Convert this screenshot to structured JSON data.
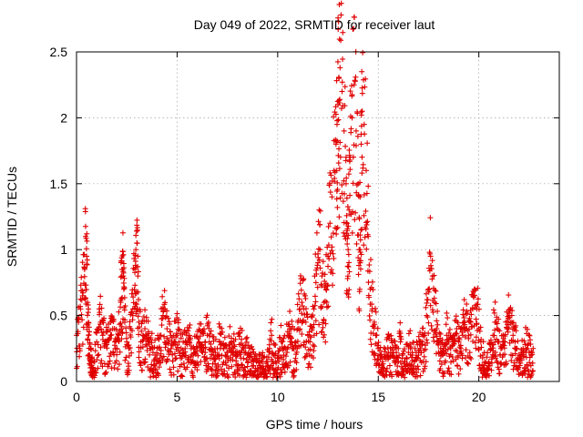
{
  "chart_data": {
    "type": "scatter",
    "title": "Day 049 of 2022, SRMTID for receiver laut",
    "xlabel": "GPS time / hours",
    "ylabel": "SRMTID / TECUs",
    "xlim": [
      0,
      24
    ],
    "ylim": [
      0,
      2.5
    ],
    "x_ticks": [
      0,
      5,
      10,
      15,
      20
    ],
    "x_tick_labels": [
      "0",
      "5",
      "10",
      "15",
      "20"
    ],
    "y_ticks": [
      0,
      0.5,
      1,
      1.5,
      2,
      2.5
    ],
    "y_tick_labels": [
      "0",
      "0.5",
      "1",
      "1.5",
      "2",
      "2.5"
    ],
    "grid": true,
    "marker": "+",
    "series_color": "#e00000",
    "series": [
      {
        "name": "SRMTID",
        "x": [
          0.0,
          0.1,
          0.2,
          0.3,
          0.4,
          0.45,
          0.5,
          0.55,
          0.6,
          0.65,
          0.7,
          0.75,
          0.8,
          0.9,
          1.0,
          1.1,
          1.2,
          1.3,
          1.4,
          1.5,
          1.6,
          1.7,
          1.8,
          1.9,
          2.0,
          2.1,
          2.2,
          2.25,
          2.3,
          2.35,
          2.4,
          2.5,
          2.6,
          2.7,
          2.8,
          2.9,
          2.95,
          3.0,
          3.05,
          3.1,
          3.2,
          3.3,
          3.4,
          3.5,
          3.6,
          3.7,
          3.8,
          3.9,
          4.0,
          4.1,
          4.2,
          4.3,
          4.4,
          4.5,
          4.6,
          4.7,
          4.8,
          4.9,
          5.0,
          5.1,
          5.2,
          5.3,
          5.4,
          5.5,
          5.6,
          5.7,
          5.8,
          5.9,
          6.0,
          6.1,
          6.2,
          6.3,
          6.4,
          6.5,
          6.6,
          6.7,
          6.8,
          6.9,
          7.0,
          7.1,
          7.2,
          7.3,
          7.4,
          7.5,
          7.6,
          7.7,
          7.8,
          7.9,
          8.0,
          8.1,
          8.2,
          8.3,
          8.4,
          8.5,
          8.6,
          8.7,
          8.8,
          8.9,
          9.0,
          9.1,
          9.2,
          9.3,
          9.4,
          9.5,
          9.6,
          9.7,
          9.8,
          9.9,
          10.0,
          10.1,
          10.2,
          10.3,
          10.4,
          10.5,
          10.6,
          10.7,
          10.8,
          10.9,
          11.0,
          11.1,
          11.2,
          11.3,
          11.4,
          11.5,
          11.6,
          11.7,
          11.8,
          11.9,
          12.0,
          12.1,
          12.2,
          12.3,
          12.4,
          12.5,
          12.6,
          12.7,
          12.8,
          12.9,
          12.95,
          13.0,
          13.05,
          13.1,
          13.2,
          13.3,
          13.4,
          13.45,
          13.5,
          13.55,
          13.6,
          13.7,
          13.8,
          13.9,
          14.0,
          14.05,
          14.1,
          14.15,
          14.2,
          14.3,
          14.4,
          14.5,
          14.6,
          14.7,
          14.8,
          14.9,
          15.0,
          15.1,
          15.2,
          15.3,
          15.4,
          15.5,
          15.6,
          15.7,
          15.8,
          15.9,
          16.0,
          16.1,
          16.2,
          16.3,
          16.4,
          16.5,
          16.6,
          16.7,
          16.8,
          16.9,
          17.0,
          17.1,
          17.2,
          17.3,
          17.4,
          17.5,
          17.6,
          17.7,
          17.8,
          17.9,
          18.0,
          18.1,
          18.2,
          18.3,
          18.4,
          18.5,
          18.6,
          18.7,
          18.8,
          18.9,
          19.0,
          19.1,
          19.2,
          19.3,
          19.4,
          19.5,
          19.6,
          19.7,
          19.8,
          19.9,
          20.0,
          20.1,
          20.2,
          20.3,
          20.4,
          20.5,
          20.6,
          20.7,
          20.8,
          20.9,
          21.0,
          21.1,
          21.2,
          21.3,
          21.4,
          21.5,
          21.6,
          21.7,
          21.8,
          21.9,
          22.0,
          22.1,
          22.2,
          22.3,
          22.4,
          22.5,
          22.6,
          22.7
        ],
        "y": [
          0.35,
          0.45,
          0.55,
          0.65,
          0.85,
          1.1,
          0.95,
          0.6,
          0.35,
          0.2,
          0.15,
          0.12,
          0.1,
          0.15,
          0.3,
          0.4,
          0.45,
          0.35,
          0.3,
          0.28,
          0.32,
          0.35,
          0.4,
          0.3,
          0.25,
          0.35,
          0.6,
          0.8,
          0.85,
          0.7,
          0.45,
          0.3,
          0.25,
          0.4,
          0.55,
          0.85,
          1.0,
          1.05,
          0.8,
          0.45,
          0.3,
          0.35,
          0.4,
          0.35,
          0.3,
          0.25,
          0.22,
          0.2,
          0.2,
          0.25,
          0.35,
          0.5,
          0.55,
          0.4,
          0.3,
          0.25,
          0.28,
          0.3,
          0.35,
          0.3,
          0.25,
          0.22,
          0.25,
          0.28,
          0.3,
          0.25,
          0.2,
          0.22,
          0.25,
          0.3,
          0.28,
          0.25,
          0.3,
          0.35,
          0.3,
          0.25,
          0.2,
          0.22,
          0.25,
          0.3,
          0.28,
          0.25,
          0.2,
          0.22,
          0.25,
          0.3,
          0.25,
          0.22,
          0.2,
          0.28,
          0.32,
          0.25,
          0.22,
          0.2,
          0.18,
          0.15,
          0.12,
          0.1,
          0.1,
          0.12,
          0.15,
          0.1,
          0.08,
          0.15,
          0.25,
          0.35,
          0.2,
          0.15,
          0.18,
          0.25,
          0.3,
          0.2,
          0.25,
          0.35,
          0.4,
          0.3,
          0.25,
          0.3,
          0.45,
          0.55,
          0.6,
          0.55,
          0.45,
          0.35,
          0.3,
          0.4,
          0.55,
          0.75,
          0.9,
          1.0,
          0.8,
          0.6,
          0.7,
          0.95,
          1.2,
          1.4,
          1.6,
          1.8,
          1.95,
          2.1,
          2.3,
          2.38,
          2.2,
          1.9,
          1.5,
          1.2,
          1.0,
          1.3,
          1.7,
          2.0,
          2.25,
          1.9,
          1.5,
          1.0,
          1.4,
          1.8,
          2.05,
          1.95,
          1.6,
          1.1,
          0.7,
          0.55,
          0.45,
          0.35,
          0.25,
          0.2,
          0.15,
          0.18,
          0.2,
          0.22,
          0.25,
          0.2,
          0.18,
          0.22,
          0.25,
          0.3,
          0.2,
          0.15,
          0.18,
          0.22,
          0.25,
          0.2,
          0.15,
          0.18,
          0.2,
          0.25,
          0.3,
          0.35,
          0.5,
          0.7,
          0.95,
          0.8,
          0.6,
          0.4,
          0.3,
          0.25,
          0.2,
          0.28,
          0.35,
          0.3,
          0.25,
          0.3,
          0.35,
          0.4,
          0.3,
          0.25,
          0.35,
          0.45,
          0.4,
          0.35,
          0.45,
          0.55,
          0.7,
          0.55,
          0.4,
          0.3,
          0.2,
          0.15,
          0.1,
          0.15,
          0.25,
          0.35,
          0.45,
          0.4,
          0.3,
          0.25,
          0.2,
          0.3,
          0.4,
          0.5,
          0.45,
          0.35,
          0.3,
          0.25,
          0.2,
          0.22,
          0.25,
          0.28,
          0.25,
          0.22,
          0.2,
          0.25
        ]
      }
    ]
  }
}
